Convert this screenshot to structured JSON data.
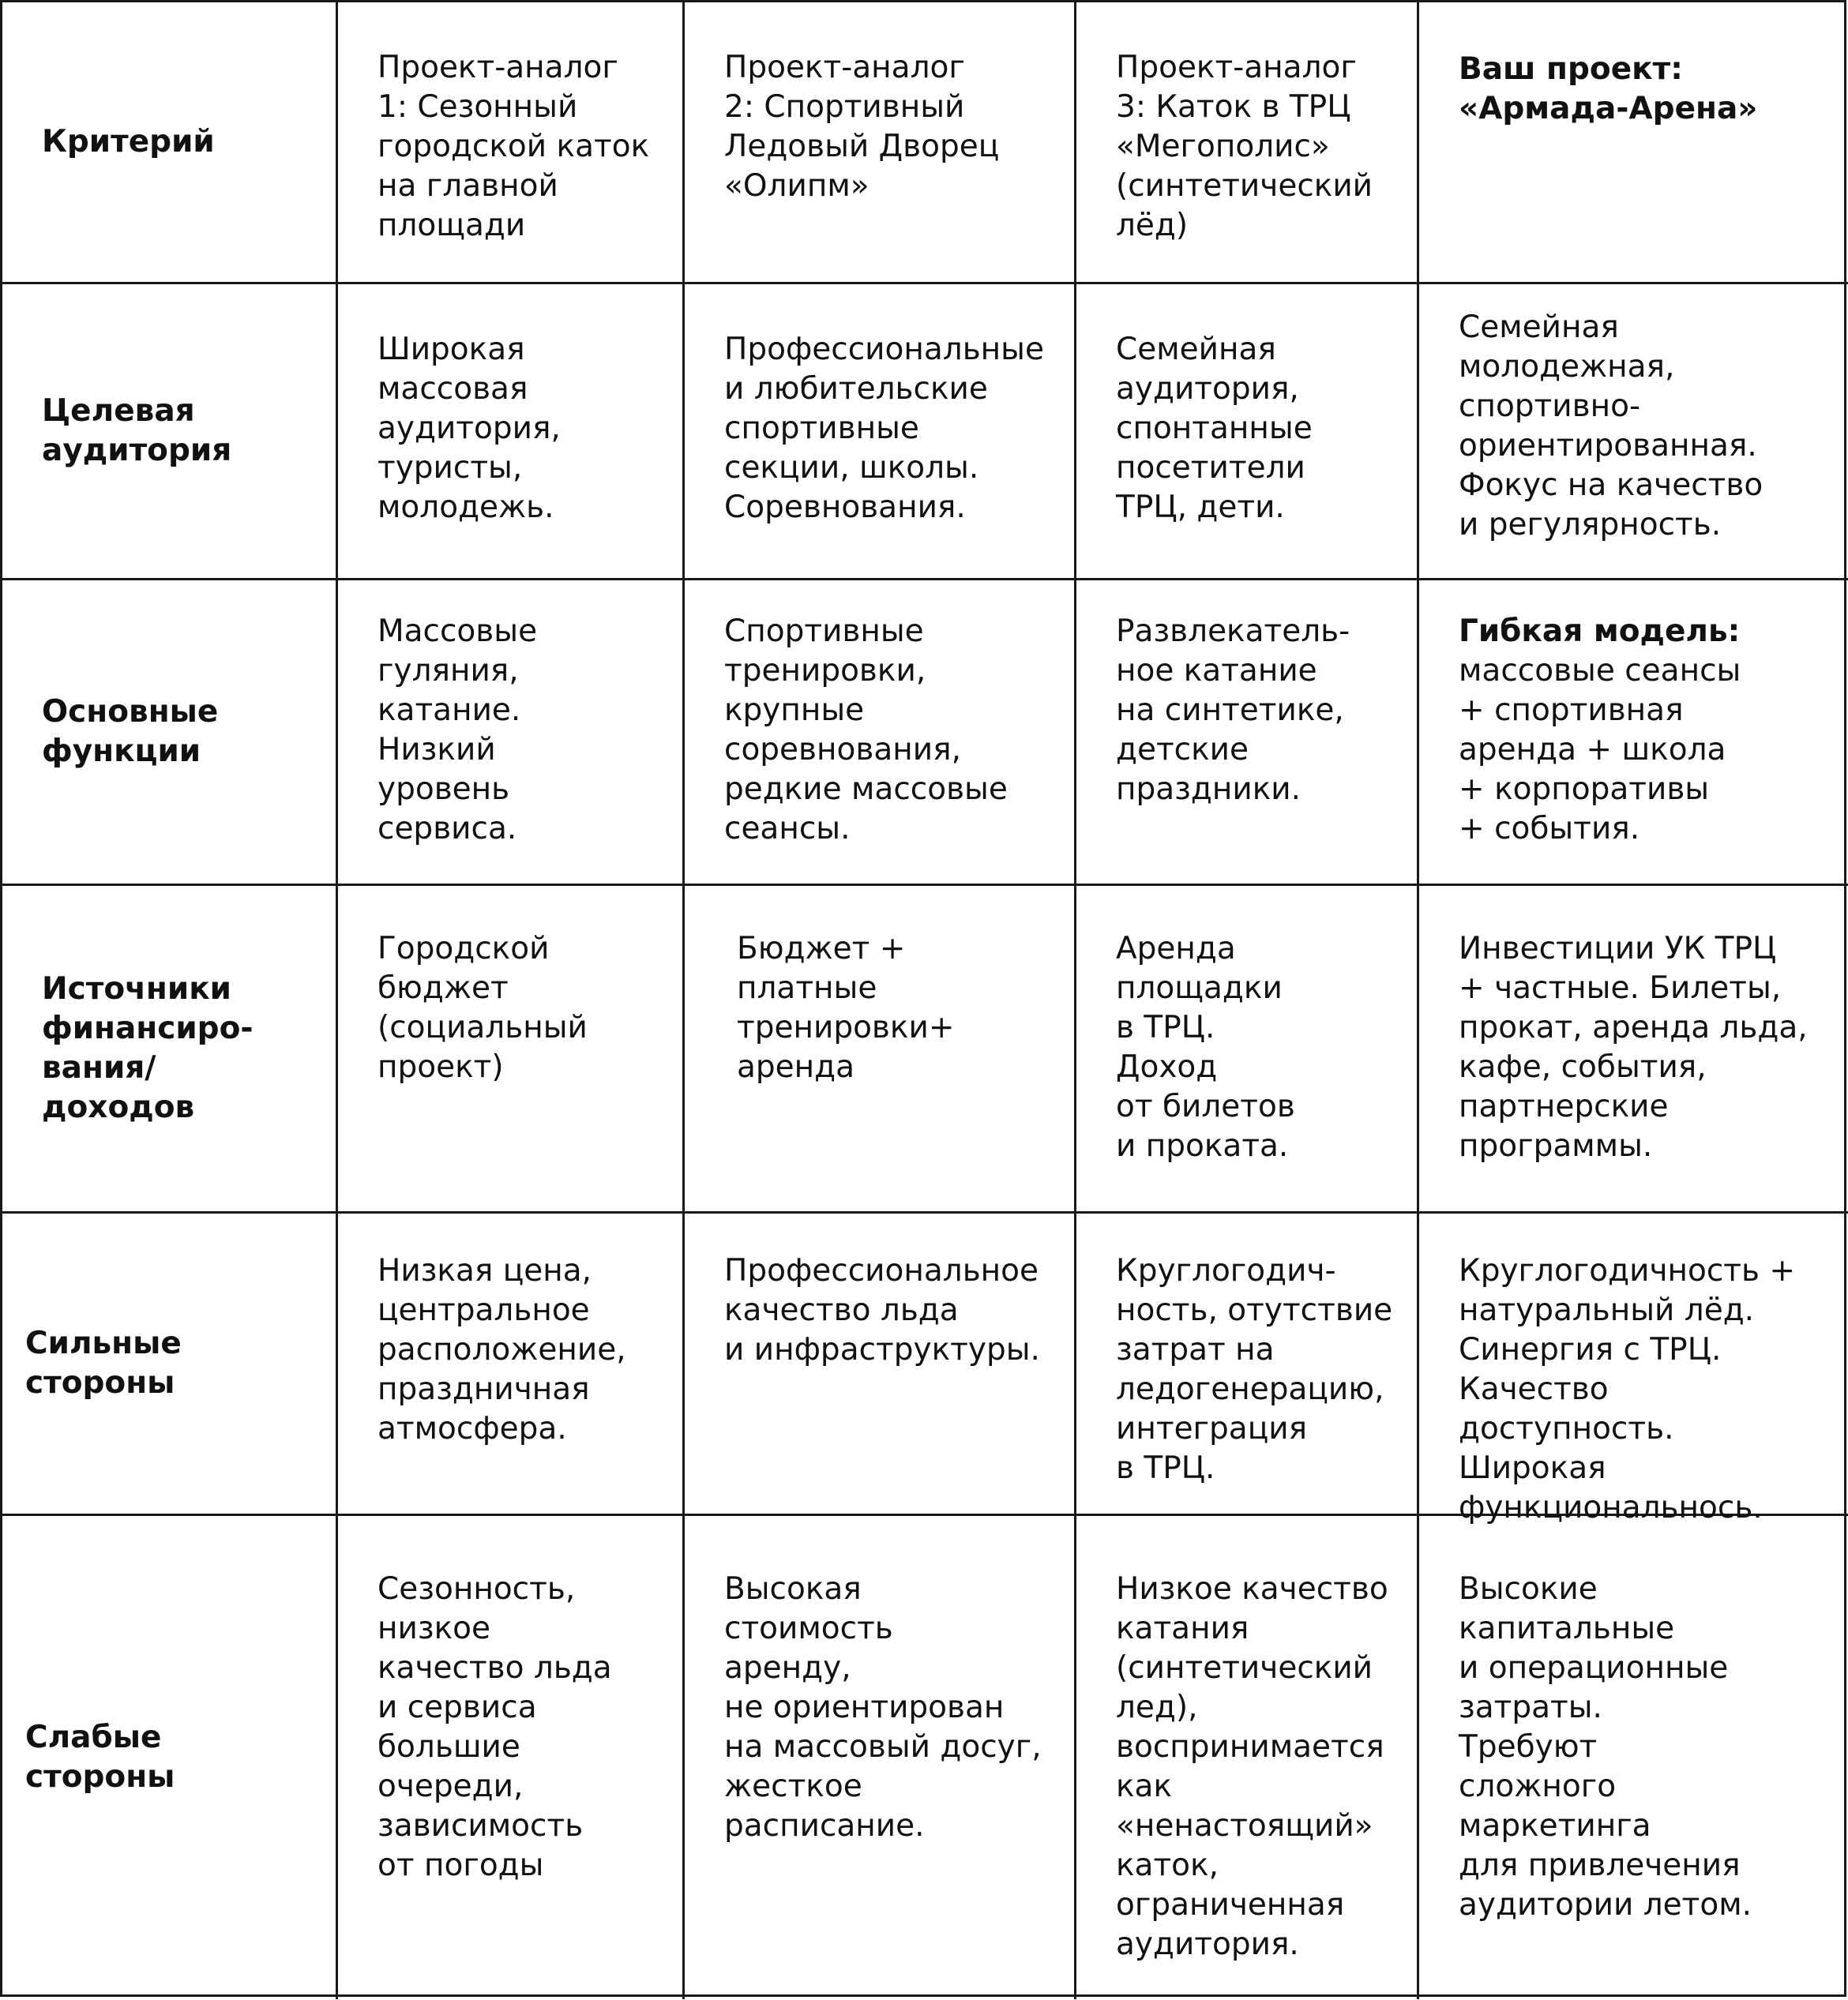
{
  "header": [
    "Критерий",
    "Проект-аналог\n1: Сезонный\nгородской каток\nна главной\nплощади",
    "Проект-аналог\n2: Спортивный\nЛедовый Дворец\n«Олипм»",
    "Проект-аналог\n3: Каток в ТРЦ\n«Мегополис»\n(синтетический\nлёд)",
    "Ваш проект:\n«Армада-Арена»"
  ],
  "rows": [
    {
      "criterion": "Целевая\nаудитория",
      "cells": [
        "Широкая\nмассовая\nаудитория,\nтуристы,\nмолодежь.",
        "Профессиональные\nи любительские\nспортивные\nсекции, школы.\nСоревнования.",
        "Семейная\nаудитория,\nспонтанные\nпосетители\nТРЦ, дети.",
        "Семейная\nмолодежная,\nспортивно-\nориентированная.\nФокус на качество\nи регулярность."
      ]
    },
    {
      "criterion": "Основные\nфункции",
      "cells": [
        "Массовые\nгуляния,\nкатание.\nНизкий\nуровень\nсервиса.",
        "Спортивные\nтренировки,\nкрупные\nсоревнования,\nредкие массовые\nсеансы.",
        "Развлекатель-\nное катание\nна синтетике,\nдетские\nпраздники.",
        "массовые сеансы\n+ спортивная\nаренда + школа\n+ корпоративы\n+ события."
      ],
      "last_lead_bold": "Гибкая модель:"
    },
    {
      "criterion": "Источники\nфинансиро-\nвания/\nдоходов",
      "cells": [
        "Городской\nбюджет\n(социальный\nпроект)",
        "Бюджет +\nплатные\nтренировки+\nаренда",
        "Аренда\nплощадки\nв ТРЦ.\nДоход\nот билетов\nи проката.",
        "Инвестиции УК ТРЦ\n+ частные. Билеты,\nпрокат, аренда льда,\nкафе, события,\nпартнерские\nпрограммы."
      ]
    },
    {
      "criterion": "Сильные\nстороны",
      "cells": [
        "Низкая цена,\nцентральное\nрасположение,\nпраздничная\nатмосфера.",
        "Профессиональное\nкачество льда\nи инфраструктуры.",
        "Круглогодич-\nность, отутствие\nзатрат на\nледогенерацию,\nинтеграция\nв ТРЦ.",
        "Круглогодичность +\nнатуральный лёд.\nСинергия с ТРЦ.\nКачество доступность.\nШирокая\nфункциональнось."
      ]
    },
    {
      "criterion": "Слабые\nстороны",
      "cells": [
        "Сезонность,\nнизкое\nкачество льда\nи сервиса\nбольшие\nочереди,\nзависимость\nот погоды",
        "Высокая\nстоимость\nаренду,\nне ориентирован\nна массовый досуг,\nжесткое\nрасписание.",
        "Низкое качество\nкатания\n(синтетический\nлед),\nвоспринимается\nкак\n«ненастоящий»\nкаток,\nограниченная\nаудитория.",
        "Высокие\nкапитальные\nи операционные\nзатраты.\nТребуют\nсложного\nмаркетинга\nдля привлечения\nаудитории летом."
      ]
    }
  ]
}
